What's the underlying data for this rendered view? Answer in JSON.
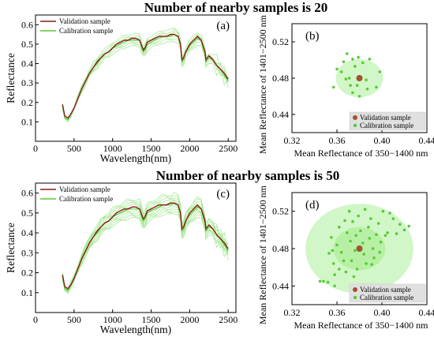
{
  "figure": {
    "title_top": "Number of nearby samples is 20",
    "title_bottom": "Number of nearby samples is 50"
  },
  "colors": {
    "validation": "#8b1a1a",
    "calibration": "#55cc33",
    "calibration_band": "#9fe58c",
    "circle_fill": "#c9f5bd",
    "circle_inner": "#b3ef9f",
    "dot_validation": "#a0522d"
  },
  "chart_data": [
    {
      "id": "a",
      "type": "line",
      "panel_label": "(a)",
      "xlabel": "Wavelength(nm)",
      "ylabel": "Reflectance",
      "xlim": [
        0,
        2600
      ],
      "ylim": [
        0,
        0.65
      ],
      "xticks": [
        0,
        500,
        1000,
        1500,
        2000,
        2500
      ],
      "yticks": [
        0.1,
        0.2,
        0.3,
        0.4,
        0.5,
        0.6
      ],
      "legend": [
        "Validation sample",
        "Calibration sample"
      ],
      "series": [
        {
          "name": "Validation sample",
          "x": [
            350,
            380,
            420,
            460,
            500,
            550,
            600,
            650,
            700,
            750,
            800,
            850,
            900,
            950,
            1000,
            1050,
            1100,
            1150,
            1200,
            1250,
            1300,
            1350,
            1380,
            1400,
            1420,
            1450,
            1500,
            1550,
            1600,
            1650,
            1700,
            1750,
            1800,
            1850,
            1880,
            1900,
            1920,
            1950,
            2000,
            2050,
            2100,
            2150,
            2200,
            2210,
            2250,
            2300,
            2350,
            2400,
            2450,
            2500
          ],
          "y": [
            0.19,
            0.13,
            0.12,
            0.14,
            0.17,
            0.22,
            0.27,
            0.31,
            0.35,
            0.38,
            0.41,
            0.43,
            0.45,
            0.46,
            0.48,
            0.5,
            0.51,
            0.52,
            0.52,
            0.53,
            0.53,
            0.52,
            0.49,
            0.47,
            0.48,
            0.51,
            0.52,
            0.53,
            0.54,
            0.54,
            0.54,
            0.55,
            0.55,
            0.54,
            0.5,
            0.42,
            0.43,
            0.46,
            0.5,
            0.52,
            0.54,
            0.52,
            0.46,
            0.42,
            0.44,
            0.42,
            0.39,
            0.37,
            0.35,
            0.32
          ]
        },
        {
          "name": "Calibration sample",
          "x": [
            350,
            380,
            420,
            460,
            500,
            550,
            600,
            650,
            700,
            750,
            800,
            850,
            900,
            950,
            1000,
            1050,
            1100,
            1150,
            1200,
            1250,
            1300,
            1350,
            1380,
            1400,
            1420,
            1450,
            1500,
            1550,
            1600,
            1650,
            1700,
            1750,
            1800,
            1850,
            1880,
            1900,
            1920,
            1950,
            2000,
            2050,
            2100,
            2150,
            2200,
            2210,
            2250,
            2300,
            2350,
            2400,
            2450,
            2500
          ],
          "y": [
            0.18,
            0.12,
            0.11,
            0.14,
            0.17,
            0.22,
            0.27,
            0.31,
            0.35,
            0.38,
            0.4,
            0.43,
            0.45,
            0.46,
            0.48,
            0.49,
            0.5,
            0.51,
            0.52,
            0.52,
            0.52,
            0.52,
            0.48,
            0.46,
            0.47,
            0.5,
            0.51,
            0.52,
            0.53,
            0.54,
            0.54,
            0.54,
            0.55,
            0.54,
            0.5,
            0.41,
            0.42,
            0.46,
            0.49,
            0.51,
            0.53,
            0.52,
            0.45,
            0.41,
            0.43,
            0.42,
            0.39,
            0.37,
            0.34,
            0.31
          ]
        }
      ]
    },
    {
      "id": "b",
      "type": "scatter",
      "panel_label": "(b)",
      "xlabel": "Mean Reflectance of 350−1400 nm",
      "ylabel": "Mean Reflectance of 1401−2500 nm",
      "xlim": [
        0.32,
        0.44
      ],
      "ylim": [
        0.42,
        0.54
      ],
      "xticks": [
        0.32,
        0.36,
        0.4,
        0.44
      ],
      "yticks": [
        0.44,
        0.48,
        0.52
      ],
      "legend": [
        "Validation sample",
        "Calibration sample"
      ],
      "validation_point": {
        "x": 0.38,
        "y": 0.48
      },
      "calibration_points": [
        {
          "x": 0.357,
          "y": 0.47
        },
        {
          "x": 0.36,
          "y": 0.49
        },
        {
          "x": 0.364,
          "y": 0.487
        },
        {
          "x": 0.366,
          "y": 0.498
        },
        {
          "x": 0.368,
          "y": 0.479
        },
        {
          "x": 0.369,
          "y": 0.507
        },
        {
          "x": 0.371,
          "y": 0.48
        },
        {
          "x": 0.372,
          "y": 0.472
        },
        {
          "x": 0.374,
          "y": 0.464
        },
        {
          "x": 0.374,
          "y": 0.501
        },
        {
          "x": 0.376,
          "y": 0.493
        },
        {
          "x": 0.378,
          "y": 0.472
        },
        {
          "x": 0.379,
          "y": 0.503
        },
        {
          "x": 0.383,
          "y": 0.497
        },
        {
          "x": 0.386,
          "y": 0.478
        },
        {
          "x": 0.387,
          "y": 0.468
        },
        {
          "x": 0.389,
          "y": 0.501
        },
        {
          "x": 0.395,
          "y": 0.47
        },
        {
          "x": 0.398,
          "y": 0.487
        },
        {
          "x": 0.38,
          "y": 0.46
        }
      ]
    },
    {
      "id": "c",
      "type": "line",
      "panel_label": "(c)",
      "xlabel": "Wavelength(nm)",
      "ylabel": "Reflectance",
      "xlim": [
        0,
        2600
      ],
      "ylim": [
        0,
        0.65
      ],
      "xticks": [
        0,
        500,
        1000,
        1500,
        2000,
        2500
      ],
      "yticks": [
        0.1,
        0.2,
        0.3,
        0.4,
        0.5,
        0.6
      ],
      "legend": [
        "Validation sample",
        "Calibration sample"
      ],
      "series": [
        {
          "name": "Validation sample",
          "x": [
            350,
            380,
            420,
            460,
            500,
            550,
            600,
            650,
            700,
            750,
            800,
            850,
            900,
            950,
            1000,
            1050,
            1100,
            1150,
            1200,
            1250,
            1300,
            1350,
            1380,
            1400,
            1420,
            1450,
            1500,
            1550,
            1600,
            1650,
            1700,
            1750,
            1800,
            1850,
            1880,
            1900,
            1920,
            1950,
            2000,
            2050,
            2100,
            2150,
            2200,
            2210,
            2250,
            2300,
            2350,
            2400,
            2450,
            2500
          ],
          "y": [
            0.19,
            0.13,
            0.12,
            0.14,
            0.17,
            0.22,
            0.27,
            0.31,
            0.35,
            0.38,
            0.41,
            0.43,
            0.45,
            0.46,
            0.48,
            0.5,
            0.51,
            0.52,
            0.52,
            0.53,
            0.53,
            0.52,
            0.49,
            0.47,
            0.48,
            0.51,
            0.52,
            0.53,
            0.54,
            0.54,
            0.54,
            0.55,
            0.55,
            0.54,
            0.5,
            0.42,
            0.43,
            0.46,
            0.5,
            0.52,
            0.54,
            0.52,
            0.46,
            0.42,
            0.44,
            0.42,
            0.39,
            0.37,
            0.35,
            0.32
          ]
        },
        {
          "name": "Calibration sample",
          "x": [
            350,
            380,
            420,
            460,
            500,
            550,
            600,
            650,
            700,
            750,
            800,
            850,
            900,
            950,
            1000,
            1050,
            1100,
            1150,
            1200,
            1250,
            1300,
            1350,
            1380,
            1400,
            1420,
            1450,
            1500,
            1550,
            1600,
            1650,
            1700,
            1750,
            1800,
            1850,
            1880,
            1900,
            1920,
            1950,
            2000,
            2050,
            2100,
            2150,
            2200,
            2210,
            2250,
            2300,
            2350,
            2400,
            2450,
            2500
          ],
          "y": [
            0.18,
            0.12,
            0.11,
            0.14,
            0.17,
            0.22,
            0.27,
            0.31,
            0.35,
            0.38,
            0.4,
            0.43,
            0.45,
            0.46,
            0.48,
            0.49,
            0.5,
            0.51,
            0.52,
            0.52,
            0.52,
            0.52,
            0.48,
            0.46,
            0.47,
            0.5,
            0.51,
            0.52,
            0.53,
            0.54,
            0.54,
            0.54,
            0.55,
            0.54,
            0.5,
            0.41,
            0.42,
            0.46,
            0.49,
            0.51,
            0.53,
            0.52,
            0.45,
            0.41,
            0.43,
            0.42,
            0.39,
            0.37,
            0.34,
            0.31
          ]
        }
      ]
    },
    {
      "id": "d",
      "type": "scatter",
      "panel_label": "(d)",
      "xlabel": "Mean Reflectance of 350−1400 nm",
      "ylabel": "Mean Reflectance of 1401−2500 nm",
      "xlim": [
        0.32,
        0.44
      ],
      "ylim": [
        0.42,
        0.54
      ],
      "xticks": [
        0.32,
        0.36,
        0.4,
        0.44
      ],
      "yticks": [
        0.44,
        0.48,
        0.52
      ],
      "legend": [
        "Validation sample",
        "Calibration sample"
      ],
      "validation_point": {
        "x": 0.38,
        "y": 0.48
      },
      "calibration_points": [
        {
          "x": 0.345,
          "y": 0.445
        },
        {
          "x": 0.348,
          "y": 0.445
        },
        {
          "x": 0.352,
          "y": 0.444
        },
        {
          "x": 0.353,
          "y": 0.475
        },
        {
          "x": 0.355,
          "y": 0.492
        },
        {
          "x": 0.357,
          "y": 0.464
        },
        {
          "x": 0.358,
          "y": 0.452
        },
        {
          "x": 0.358,
          "y": 0.44
        },
        {
          "x": 0.36,
          "y": 0.484
        },
        {
          "x": 0.362,
          "y": 0.503
        },
        {
          "x": 0.364,
          "y": 0.476
        },
        {
          "x": 0.366,
          "y": 0.467
        },
        {
          "x": 0.367,
          "y": 0.51
        },
        {
          "x": 0.369,
          "y": 0.497
        },
        {
          "x": 0.371,
          "y": 0.52
        },
        {
          "x": 0.372,
          "y": 0.488
        },
        {
          "x": 0.373,
          "y": 0.467
        },
        {
          "x": 0.374,
          "y": 0.509
        },
        {
          "x": 0.376,
          "y": 0.478
        },
        {
          "x": 0.377,
          "y": 0.494
        },
        {
          "x": 0.378,
          "y": 0.458
        },
        {
          "x": 0.379,
          "y": 0.515
        },
        {
          "x": 0.381,
          "y": 0.499
        },
        {
          "x": 0.383,
          "y": 0.486
        },
        {
          "x": 0.384,
          "y": 0.474
        },
        {
          "x": 0.385,
          "y": 0.522
        },
        {
          "x": 0.386,
          "y": 0.464
        },
        {
          "x": 0.388,
          "y": 0.503
        },
        {
          "x": 0.389,
          "y": 0.491
        },
        {
          "x": 0.39,
          "y": 0.512
        },
        {
          "x": 0.392,
          "y": 0.48
        },
        {
          "x": 0.393,
          "y": 0.47
        },
        {
          "x": 0.395,
          "y": 0.495
        },
        {
          "x": 0.397,
          "y": 0.507
        },
        {
          "x": 0.399,
          "y": 0.487
        },
        {
          "x": 0.401,
          "y": 0.52
        },
        {
          "x": 0.403,
          "y": 0.494
        },
        {
          "x": 0.405,
          "y": 0.497
        },
        {
          "x": 0.407,
          "y": 0.518
        },
        {
          "x": 0.41,
          "y": 0.512
        },
        {
          "x": 0.413,
          "y": 0.496
        },
        {
          "x": 0.416,
          "y": 0.506
        },
        {
          "x": 0.42,
          "y": 0.5
        },
        {
          "x": 0.424,
          "y": 0.504
        },
        {
          "x": 0.368,
          "y": 0.455
        },
        {
          "x": 0.362,
          "y": 0.458
        },
        {
          "x": 0.391,
          "y": 0.463
        },
        {
          "x": 0.375,
          "y": 0.45
        },
        {
          "x": 0.398,
          "y": 0.476
        },
        {
          "x": 0.356,
          "y": 0.478
        }
      ]
    }
  ]
}
